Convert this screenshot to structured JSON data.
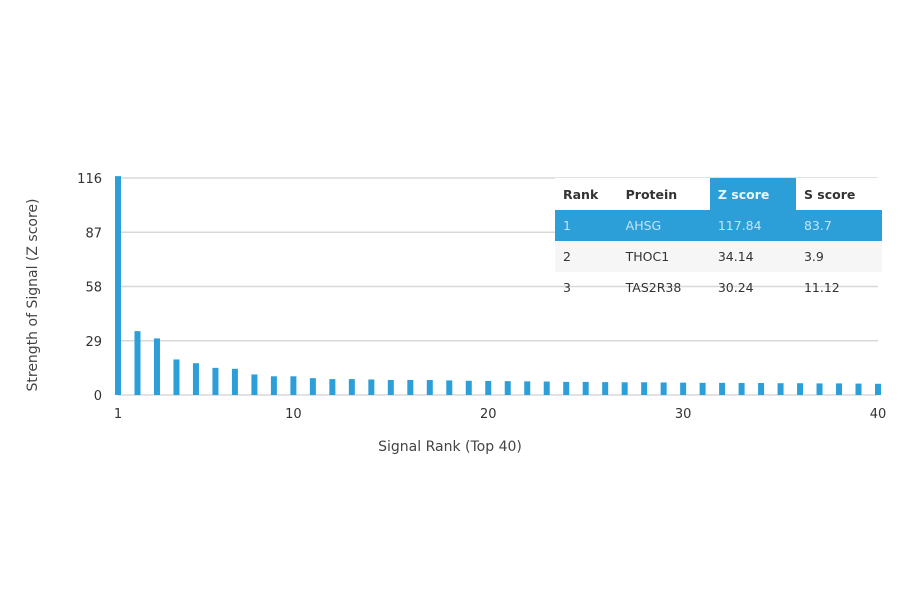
{
  "chart_data": {
    "type": "bar",
    "xlabel": "Signal Rank (Top 40)",
    "ylabel": "Strength of Signal (Z score)",
    "yticks": [
      0,
      29,
      58,
      87,
      116
    ],
    "xticks": [
      1,
      10,
      20,
      30,
      40
    ],
    "ylim": [
      0,
      116
    ],
    "xlim": [
      1,
      40
    ],
    "grid": true,
    "color": "#2d9fd8",
    "x": [
      1,
      2,
      3,
      4,
      5,
      6,
      7,
      8,
      9,
      10,
      11,
      12,
      13,
      14,
      15,
      16,
      17,
      18,
      19,
      20,
      21,
      22,
      23,
      24,
      25,
      26,
      27,
      28,
      29,
      30,
      31,
      32,
      33,
      34,
      35,
      36,
      37,
      38,
      39,
      40
    ],
    "values": [
      117.84,
      34.14,
      30.24,
      19,
      17,
      14.5,
      14,
      11,
      10,
      10,
      9,
      8.5,
      8.5,
      8.3,
      8,
      8,
      8,
      7.8,
      7.6,
      7.5,
      7.4,
      7.3,
      7.2,
      7,
      7,
      6.9,
      6.8,
      6.8,
      6.7,
      6.6,
      6.5,
      6.5,
      6.4,
      6.4,
      6.3,
      6.3,
      6.2,
      6.2,
      6.1,
      6
    ],
    "table": {
      "headers": [
        "Rank",
        "Protein",
        "Z score",
        "S score"
      ],
      "rows": [
        [
          "1",
          "AHSG",
          "117.84",
          "83.7"
        ],
        [
          "2",
          "THOC1",
          "34.14",
          "3.9"
        ],
        [
          "3",
          "TAS2R38",
          "30.24",
          "11.12"
        ]
      ]
    }
  }
}
